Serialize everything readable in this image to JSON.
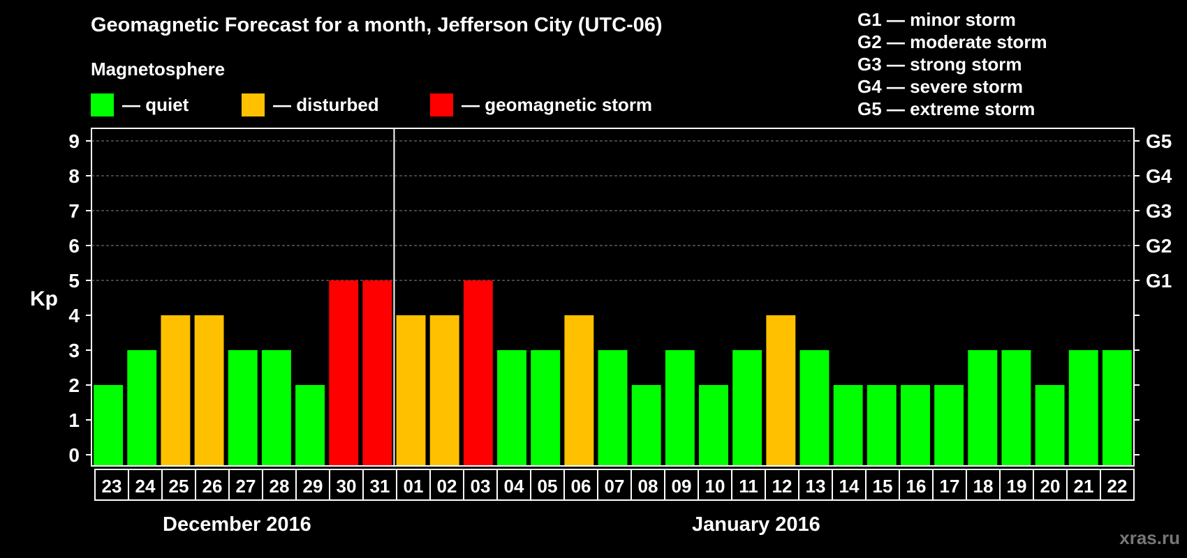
{
  "title": "Geomagnetic Forecast for a month, Jefferson City (UTC-06)",
  "subtitle": "Magnetosphere",
  "legend": [
    {
      "label": "— quiet",
      "color": "#00ff00"
    },
    {
      "label": "— disturbed",
      "color": "#ffc000"
    },
    {
      "label": "— geomagnetic storm",
      "color": "#ff0000"
    }
  ],
  "g_scale_legend": [
    "G1 — minor storm",
    "G2 — moderate storm",
    "G3 — strong storm",
    "G4 — severe storm",
    "G5 — extreme storm"
  ],
  "months": [
    "December 2016",
    "January 2016"
  ],
  "watermark": "xras.ru",
  "chart_data": {
    "type": "bar",
    "ylabel": "Kp",
    "ylim": [
      0,
      9
    ],
    "yticks": [
      0,
      1,
      2,
      3,
      4,
      5,
      6,
      7,
      8,
      9
    ],
    "right_ticks": [
      {
        "kp": 5,
        "label": "G1"
      },
      {
        "kp": 6,
        "label": "G2"
      },
      {
        "kp": 7,
        "label": "G3"
      },
      {
        "kp": 8,
        "label": "G4"
      },
      {
        "kp": 9,
        "label": "G5"
      }
    ],
    "grid": true,
    "categories": [
      "23",
      "24",
      "25",
      "26",
      "27",
      "28",
      "29",
      "30",
      "31",
      "01",
      "02",
      "03",
      "04",
      "05",
      "06",
      "07",
      "08",
      "09",
      "10",
      "11",
      "12",
      "13",
      "14",
      "15",
      "16",
      "17",
      "18",
      "19",
      "20",
      "21",
      "22"
    ],
    "values": [
      2,
      3,
      4,
      4,
      3,
      3,
      2,
      5,
      5,
      4,
      4,
      5,
      3,
      3,
      4,
      3,
      2,
      3,
      2,
      3,
      4,
      3,
      2,
      2,
      2,
      2,
      3,
      3,
      2,
      3,
      3
    ],
    "month_split_after_index": 8,
    "colors": {
      "quiet": "#00ff00",
      "disturbed": "#ffc000",
      "storm": "#ff0000"
    }
  }
}
